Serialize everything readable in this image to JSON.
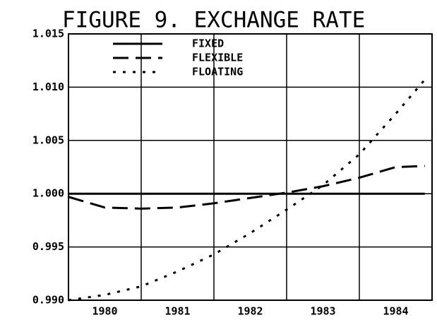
{
  "chart_data": {
    "type": "line",
    "title": "FIGURE 9. EXCHANGE RATE",
    "x": [
      1979.5,
      1980,
      1980.5,
      1981,
      1981.5,
      1982,
      1982.5,
      1983,
      1983.5,
      1984,
      1984.4
    ],
    "xlim": [
      1979.5,
      1984.5
    ],
    "xticks": [
      1980,
      1981,
      1982,
      1983,
      1984
    ],
    "xgrid": [
      1980.5,
      1981.5,
      1982.5,
      1983.5
    ],
    "ylim": [
      0.99,
      1.015
    ],
    "yticks": [
      {
        "value": 0.99,
        "label": "0.990"
      },
      {
        "value": 0.995,
        "label": "0.995"
      },
      {
        "value": 1.0,
        "label": "1.000"
      },
      {
        "value": 1.005,
        "label": "1.005"
      },
      {
        "value": 1.01,
        "label": "1.010"
      },
      {
        "value": 1.015,
        "label": "1.015"
      }
    ],
    "grid": true,
    "series": [
      {
        "name": "FIXED",
        "color": "#000",
        "dash": "none",
        "values": [
          1.0,
          1.0,
          1.0,
          1.0,
          1.0,
          1.0,
          1.0,
          1.0,
          1.0,
          1.0,
          1.0
        ]
      },
      {
        "name": "FLEXIBLE",
        "color": "#000",
        "dash": "22 10",
        "values": [
          0.9997,
          0.9987,
          0.9986,
          0.9987,
          0.9991,
          0.9996,
          1.0001,
          1.0007,
          1.0015,
          1.0025,
          1.0026
        ]
      },
      {
        "name": "FLOATING",
        "color": "#000",
        "dash": "4 10",
        "values": [
          0.99,
          0.9905,
          0.9913,
          0.9927,
          0.9943,
          0.9963,
          0.9985,
          1.0008,
          1.0037,
          1.0075,
          1.0107
        ]
      }
    ]
  }
}
